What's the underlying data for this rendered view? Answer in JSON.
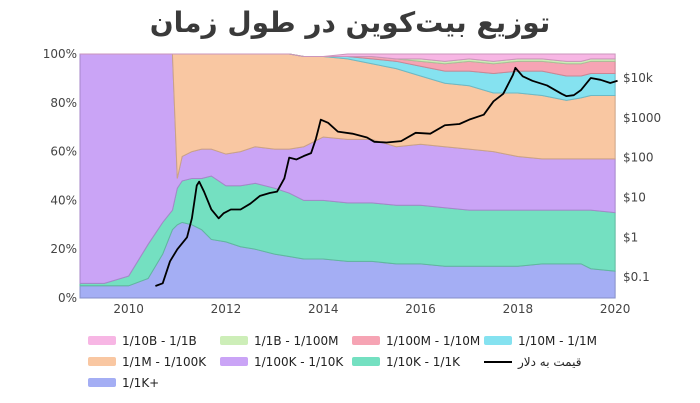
{
  "title": "توزیع بیت‌کوین در طول زمان",
  "chart_data": {
    "type": "area",
    "stacked": true,
    "normalized_percent": true,
    "x_range": [
      2009.0,
      2020.1
    ],
    "y_range": [
      0,
      100
    ],
    "x_ticks": [
      2010,
      2012,
      2014,
      2016,
      2018,
      2020
    ],
    "y_ticks": [
      0,
      20,
      40,
      60,
      80,
      100
    ],
    "y_tick_labels": [
      "0%",
      "20%",
      "40%",
      "60%",
      "80%",
      "100%"
    ],
    "y2_log_range": [
      0.03,
      40000
    ],
    "y2_ticks": [
      0.1,
      1,
      10,
      100,
      1000,
      10000
    ],
    "y2_tick_labels": [
      "$0.1",
      "$1",
      "$10",
      "$100",
      "$1000",
      "$10k"
    ],
    "x": [
      2009.0,
      2009.5,
      2010.0,
      2010.4,
      2010.7,
      2010.9,
      2011.0,
      2011.1,
      2011.3,
      2011.5,
      2011.7,
      2012.0,
      2012.3,
      2012.6,
      2013.0,
      2013.3,
      2013.6,
      2014.0,
      2014.5,
      2015.0,
      2015.5,
      2016.0,
      2016.5,
      2017.0,
      2017.5,
      2018.0,
      2018.5,
      2019.0,
      2019.3,
      2019.5,
      2020.0
    ],
    "series": [
      {
        "name": "1/1K+",
        "color": "#a4aef4",
        "values": [
          5,
          5,
          5,
          8,
          18,
          28,
          30,
          31,
          30,
          28,
          24,
          23,
          21,
          20,
          18,
          17,
          16,
          16,
          15,
          15,
          14,
          14,
          13,
          13,
          13,
          13,
          14,
          14,
          14,
          12,
          11
        ]
      },
      {
        "name": "1/10K - 1/1K",
        "color": "#74e0c1",
        "values": [
          1,
          1,
          4,
          14,
          13,
          8,
          15,
          17,
          19,
          21,
          26,
          23,
          25,
          27,
          27,
          26,
          24,
          24,
          24,
          24,
          24,
          24,
          24,
          23,
          23,
          23,
          22,
          22,
          22,
          24,
          24
        ]
      },
      {
        "name": "1/100K - 1/10K",
        "color": "#caa4f6",
        "values": [
          94,
          94,
          91,
          78,
          69,
          64,
          4,
          10,
          11,
          12,
          11,
          13,
          14,
          15,
          16,
          18,
          22,
          26,
          26,
          26,
          24,
          25,
          25,
          25,
          24,
          22,
          21,
          21,
          21,
          21,
          22
        ]
      },
      {
        "name": "1/1M - 1/100K",
        "color": "#f9c7a2",
        "values": [
          0,
          0,
          0,
          0,
          0,
          0,
          51,
          42,
          40,
          39,
          39,
          41,
          40,
          38,
          39,
          39,
          37,
          33,
          33,
          31,
          32,
          28,
          26,
          26,
          24,
          26,
          26,
          24,
          25,
          26,
          26
        ]
      },
      {
        "name": "1/10M - 1/1M",
        "color": "#85e2f0",
        "values": [
          0,
          0,
          0,
          0,
          0,
          0,
          0,
          0,
          0,
          0,
          0,
          0,
          0,
          0,
          0,
          0,
          0,
          0,
          1,
          2,
          3,
          4,
          5,
          6,
          8,
          9,
          10,
          10,
          9,
          9,
          9
        ]
      },
      {
        "name": "1/100M - 1/10M",
        "color": "#f6a4b4",
        "values": [
          0,
          0,
          0,
          0,
          0,
          0,
          0,
          0,
          0,
          0,
          0,
          0,
          0,
          0,
          0,
          0,
          0,
          0,
          0,
          1,
          1,
          2,
          3,
          4,
          4,
          4,
          4,
          5,
          5,
          5,
          5
        ]
      },
      {
        "name": "1/1B - 1/100M",
        "color": "#cdeeb8",
        "values": [
          0,
          0,
          0,
          0,
          0,
          0,
          0,
          0,
          0,
          0,
          0,
          0,
          0,
          0,
          0,
          0,
          0,
          0,
          0,
          0,
          0,
          1,
          1,
          1,
          1,
          1,
          1,
          1,
          1,
          1,
          1
        ]
      },
      {
        "name": "1/10B - 1/1B",
        "color": "#f7b6e4",
        "values": [
          0,
          0,
          0,
          0,
          0,
          0,
          0,
          0,
          0,
          0,
          0,
          0,
          0,
          0,
          0,
          0,
          0,
          0,
          1,
          1,
          2,
          2,
          3,
          2,
          3,
          2,
          2,
          3,
          3,
          2,
          2
        ]
      }
    ],
    "price": {
      "name": "قیمت به دلار",
      "axis": "right_log",
      "x": [
        2010.55,
        2010.7,
        2010.85,
        2011.0,
        2011.2,
        2011.3,
        2011.4,
        2011.45,
        2011.55,
        2011.7,
        2011.85,
        2011.95,
        2012.1,
        2012.3,
        2012.5,
        2012.7,
        2012.9,
        2013.05,
        2013.2,
        2013.3,
        2013.45,
        2013.6,
        2013.75,
        2013.85,
        2013.95,
        2014.1,
        2014.3,
        2014.6,
        2014.9,
        2015.05,
        2015.3,
        2015.6,
        2015.9,
        2016.2,
        2016.5,
        2016.8,
        2017.0,
        2017.3,
        2017.5,
        2017.7,
        2017.9,
        2017.95,
        2018.1,
        2018.3,
        2018.6,
        2018.9,
        2019.0,
        2019.15,
        2019.3,
        2019.5,
        2019.7,
        2019.9,
        2020.05
      ],
      "y": [
        0.06,
        0.07,
        0.25,
        0.5,
        1,
        3,
        20,
        25,
        14,
        5,
        3,
        4,
        5,
        5,
        7,
        11,
        13,
        14,
        30,
        100,
        90,
        110,
        130,
        300,
        900,
        750,
        450,
        400,
        320,
        250,
        240,
        260,
        420,
        400,
        650,
        700,
        900,
        1200,
        2600,
        4000,
        12000,
        18000,
        11000,
        8500,
        6500,
        4000,
        3500,
        3700,
        5000,
        10000,
        9000,
        7500,
        8500
      ]
    }
  },
  "legend": {
    "rows": [
      [
        "1/10B - 1/1B",
        "1/1B - 1/100M",
        "1/100M - 1/10M",
        "1/10M - 1/1M"
      ],
      [
        "1/1M - 1/100K",
        "1/100K - 1/10K",
        "1/10K - 1/1K",
        "قیمت به دلار"
      ],
      [
        "1/1K+"
      ]
    ]
  }
}
